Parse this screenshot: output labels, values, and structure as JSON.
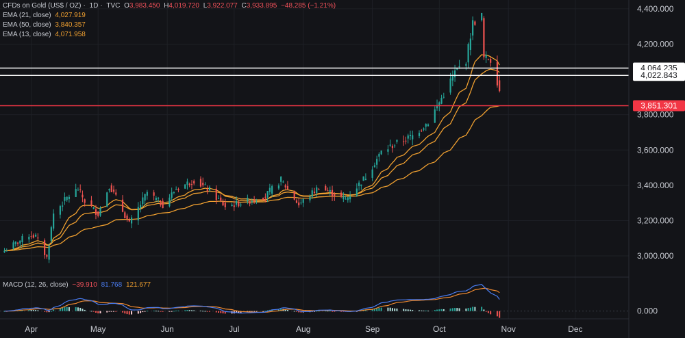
{
  "header": {
    "symbol": "CFDs on Gold (US$ / OZ)",
    "interval": "1D",
    "source": "TVC",
    "open_label": "O",
    "open": "3,983.450",
    "high_label": "H",
    "high": "4,019.720",
    "low_label": "L",
    "low": "3,922.077",
    "close_label": "C",
    "close": "3,933.895",
    "change": "−48.285 (−1.21%)"
  },
  "indicators": [
    {
      "label": "EMA (21, close)",
      "value": "4,027.919",
      "color": "#f0a030"
    },
    {
      "label": "EMA (50, close)",
      "value": "3,840.357",
      "color": "#f0a030"
    },
    {
      "label": "EMA (13, close)",
      "value": "4,071.958",
      "color": "#f0a030"
    }
  ],
  "macd_legend": {
    "label": "MACD (12, 26, close)",
    "histogram": "−39.910",
    "macd": "81.768",
    "signal": "121.677"
  },
  "colors": {
    "background": "#131418",
    "up": "#26a69a",
    "down": "#ef5350",
    "ema": "#f0a030",
    "macd": "#4a7cf0",
    "signal": "#f08a30",
    "support_line": "#ffffff",
    "resistance_line": "#f23645"
  },
  "chart_data": [
    {
      "type": "candlestick",
      "title": "CFDs on Gold (US$ / OZ) · 1D · TVC",
      "ylim": [
        2880,
        4450
      ],
      "y_ticks": [
        "4,400.000",
        "4,200.000",
        "3,800.000",
        "3,600.000",
        "3,400.000",
        "3,200.000",
        "3,000.000"
      ],
      "y_tick_values": [
        4400,
        4200,
        3800,
        3600,
        3400,
        3200,
        3000
      ],
      "x_ticks": [
        "Apr",
        "May",
        "Jun",
        "Jul",
        "Aug",
        "Sep",
        "Oct",
        "Nov",
        "Dec"
      ],
      "x_tick_dates": [
        "2025-04-01",
        "2025-05-01",
        "2025-06-01",
        "2025-07-01",
        "2025-08-01",
        "2025-09-01",
        "2025-10-01",
        "2025-11-01",
        "2025-12-01"
      ],
      "x_range": [
        "2025-03-18",
        "2025-12-25"
      ],
      "horizontal_lines": [
        {
          "value": 4064.235,
          "label": "4,064.235",
          "color": "#ffffff"
        },
        {
          "value": 4022.843,
          "label": "4,022.843",
          "color": "#ffffff"
        },
        {
          "value": 3851.301,
          "label": "3,851.301",
          "color": "#f23645"
        }
      ],
      "anchors": [
        [
          "2025-03-20",
          3030
        ],
        [
          "2025-03-31",
          3120
        ],
        [
          "2025-04-03",
          3110
        ],
        [
          "2025-04-08",
          2990
        ],
        [
          "2025-04-11",
          3240
        ],
        [
          "2025-04-17",
          3330
        ],
        [
          "2025-04-22",
          3380
        ],
        [
          "2025-04-25",
          3310
        ],
        [
          "2025-05-01",
          3240
        ],
        [
          "2025-05-06",
          3400
        ],
        [
          "2025-05-09",
          3330
        ],
        [
          "2025-05-15",
          3180
        ],
        [
          "2025-05-23",
          3360
        ],
        [
          "2025-05-30",
          3290
        ],
        [
          "2025-06-05",
          3380
        ],
        [
          "2025-06-13",
          3430
        ],
        [
          "2025-06-20",
          3370
        ],
        [
          "2025-06-27",
          3280
        ],
        [
          "2025-07-07",
          3310
        ],
        [
          "2025-07-15",
          3340
        ],
        [
          "2025-07-22",
          3430
        ],
        [
          "2025-07-30",
          3290
        ],
        [
          "2025-08-08",
          3390
        ],
        [
          "2025-08-20",
          3320
        ],
        [
          "2025-08-29",
          3450
        ],
        [
          "2025-09-05",
          3590
        ],
        [
          "2025-09-12",
          3640
        ],
        [
          "2025-09-19",
          3680
        ],
        [
          "2025-09-26",
          3760
        ],
        [
          "2025-10-01",
          3870
        ],
        [
          "2025-10-08",
          4040
        ],
        [
          "2025-10-13",
          4110
        ],
        [
          "2025-10-16",
          4320
        ],
        [
          "2025-10-20",
          4360
        ],
        [
          "2025-10-21",
          4120
        ],
        [
          "2025-10-23",
          4120
        ],
        [
          "2025-10-24",
          4110
        ],
        [
          "2025-10-27",
          3990
        ],
        [
          "2025-10-28",
          3934
        ]
      ],
      "ema_periods": [
        13,
        21,
        50
      ]
    },
    {
      "type": "line",
      "title": "MACD (12, 26, close)",
      "ylim": [
        -40,
        200
      ],
      "y_ticks": [
        "0.000"
      ],
      "y_tick_values": [
        0
      ],
      "series": [
        {
          "name": "MACD",
          "color": "#4a7cf0"
        },
        {
          "name": "Signal",
          "color": "#f08a30"
        },
        {
          "name": "Histogram",
          "color": "#26a69a"
        }
      ],
      "last_values": {
        "histogram": -39.91,
        "macd": 81.768,
        "signal": 121.677
      }
    }
  ]
}
